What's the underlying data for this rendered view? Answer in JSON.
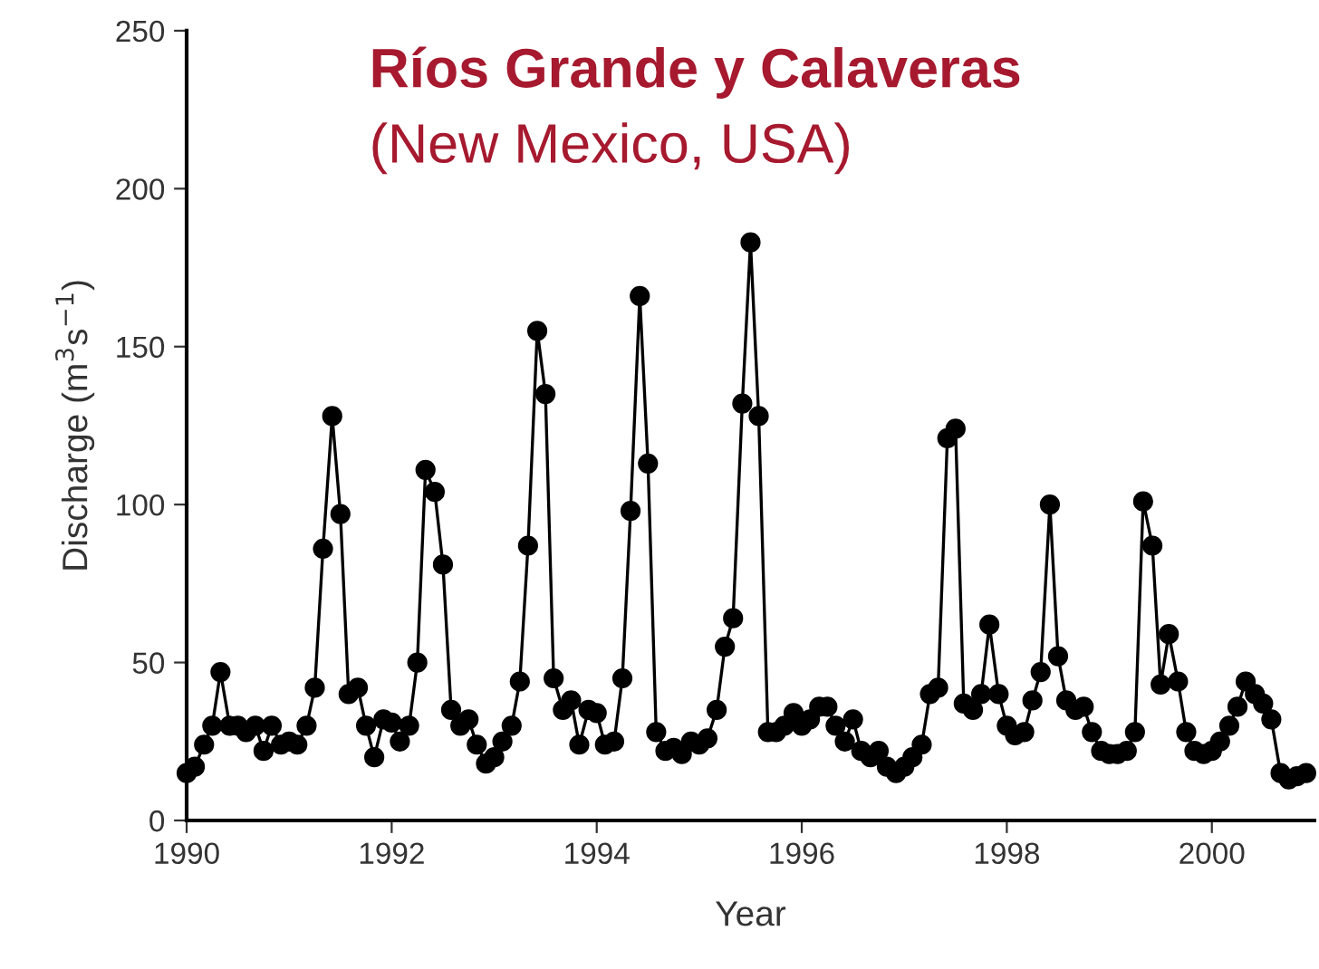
{
  "chart_data": {
    "type": "line",
    "title": "Ríos Grande y Calaveras",
    "subtitle": "(New Mexico, USA)",
    "xlabel": "Year",
    "ylabel": "Discharge (m$^{3}$s$^{−1}$)",
    "xlim": [
      1990,
      2001
    ],
    "xticks": [
      1990,
      1992,
      1994,
      1996,
      1998,
      2000
    ],
    "ylim": [
      0,
      250
    ],
    "yticks": [
      0,
      50,
      100,
      150,
      200,
      250
    ],
    "grid": false,
    "legend": false,
    "marker": "circle",
    "line_style": "solid",
    "series": [
      {
        "color": "#000000",
        "x": [
          1990.0,
          1990.08,
          1990.17,
          1990.25,
          1990.33,
          1990.42,
          1990.5,
          1990.58,
          1990.67,
          1990.75,
          1990.83,
          1990.92,
          1991.0,
          1991.08,
          1991.17,
          1991.25,
          1991.33,
          1991.42,
          1991.5,
          1991.58,
          1991.67,
          1991.75,
          1991.83,
          1991.92,
          1992.0,
          1992.08,
          1992.17,
          1992.25,
          1992.33,
          1992.42,
          1992.5,
          1992.58,
          1992.67,
          1992.75,
          1992.83,
          1992.92,
          1993.0,
          1993.08,
          1993.17,
          1993.25,
          1993.33,
          1993.42,
          1993.5,
          1993.58,
          1993.67,
          1993.75,
          1993.83,
          1993.92,
          1994.0,
          1994.08,
          1994.17,
          1994.25,
          1994.33,
          1994.42,
          1994.5,
          1994.58,
          1994.67,
          1994.75,
          1994.83,
          1994.92,
          1995.0,
          1995.08,
          1995.17,
          1995.25,
          1995.33,
          1995.42,
          1995.5,
          1995.58,
          1995.67,
          1995.75,
          1995.83,
          1995.92,
          1996.0,
          1996.08,
          1996.17,
          1996.25,
          1996.33,
          1996.42,
          1996.5,
          1996.58,
          1996.67,
          1996.75,
          1996.83,
          1996.92,
          1997.0,
          1997.08,
          1997.17,
          1997.25,
          1997.33,
          1997.42,
          1997.5,
          1997.58,
          1997.67,
          1997.75,
          1997.83,
          1997.92,
          1998.0,
          1998.08,
          1998.17,
          1998.25,
          1998.33,
          1998.42,
          1998.5,
          1998.58,
          1998.67,
          1998.75,
          1998.83,
          1998.92,
          1999.0,
          1999.08,
          1999.17,
          1999.25,
          1999.33,
          1999.42,
          1999.5,
          1999.58,
          1999.67,
          1999.75,
          1999.83,
          1999.92,
          2000.0,
          2000.08,
          2000.17,
          2000.25,
          2000.33,
          2000.42,
          2000.5,
          2000.58,
          2000.67,
          2000.75,
          2000.83,
          2000.92
        ],
        "values": [
          15,
          17,
          24,
          30,
          47,
          30,
          30,
          28,
          30,
          22,
          30,
          24,
          25,
          24,
          30,
          42,
          86,
          128,
          97,
          40,
          42,
          30,
          20,
          32,
          31,
          25,
          30,
          50,
          111,
          104,
          81,
          35,
          30,
          32,
          24,
          18,
          20,
          25,
          30,
          44,
          87,
          155,
          135,
          45,
          35,
          38,
          24,
          35,
          34,
          24,
          25,
          45,
          98,
          166,
          113,
          28,
          22,
          23,
          21,
          25,
          24,
          26,
          35,
          55,
          64,
          132,
          183,
          128,
          28,
          28,
          30,
          34,
          30,
          32,
          36,
          36,
          30,
          25,
          32,
          22,
          20,
          22,
          17,
          15,
          17,
          20,
          24,
          40,
          42,
          121,
          124,
          37,
          35,
          40,
          62,
          40,
          30,
          27,
          28,
          38,
          47,
          100,
          52,
          38,
          35,
          36,
          28,
          22,
          21,
          21,
          22,
          28,
          101,
          87,
          43,
          59,
          44,
          28,
          22,
          21,
          22,
          25,
          30,
          36,
          44,
          40,
          37,
          32,
          15,
          13,
          14,
          15
        ]
      }
    ]
  }
}
